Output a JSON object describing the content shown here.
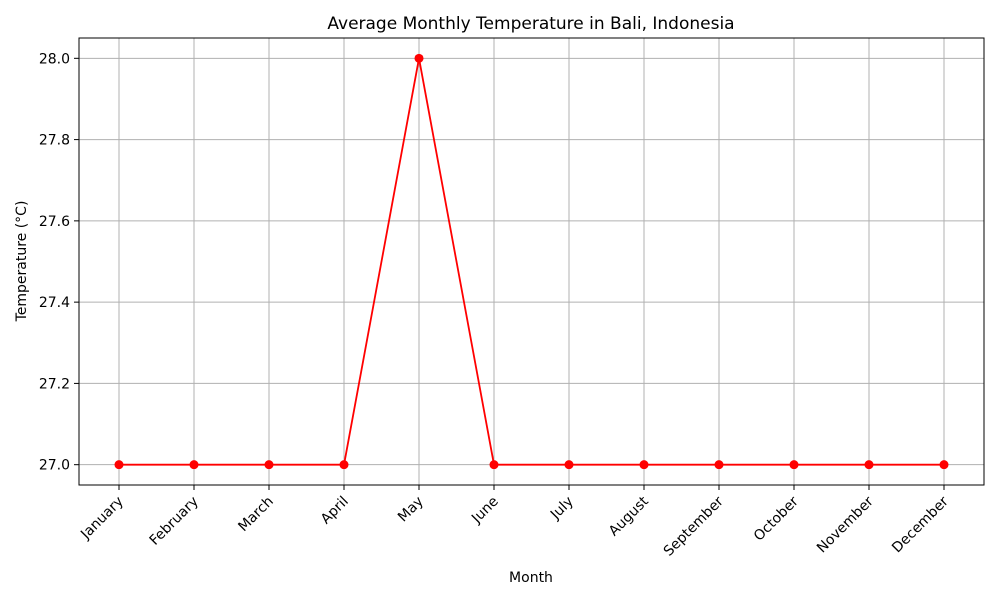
{
  "chart_data": {
    "type": "line",
    "title": "Average Monthly Temperature in Bali, Indonesia",
    "xlabel": "Month",
    "ylabel": "Temperature (°C)",
    "categories": [
      "January",
      "February",
      "March",
      "April",
      "May",
      "June",
      "July",
      "August",
      "September",
      "October",
      "November",
      "December"
    ],
    "series": [
      {
        "name": "Temperature",
        "color": "#ff0000",
        "marker": "circle",
        "values": [
          27,
          27,
          27,
          27,
          28,
          27,
          27,
          27,
          27,
          27,
          27,
          27
        ]
      }
    ],
    "yticks": [
      "27.0",
      "27.2",
      "27.4",
      "27.6",
      "27.8",
      "28.0"
    ],
    "ylim": [
      26.95,
      28.05
    ],
    "grid": true
  }
}
